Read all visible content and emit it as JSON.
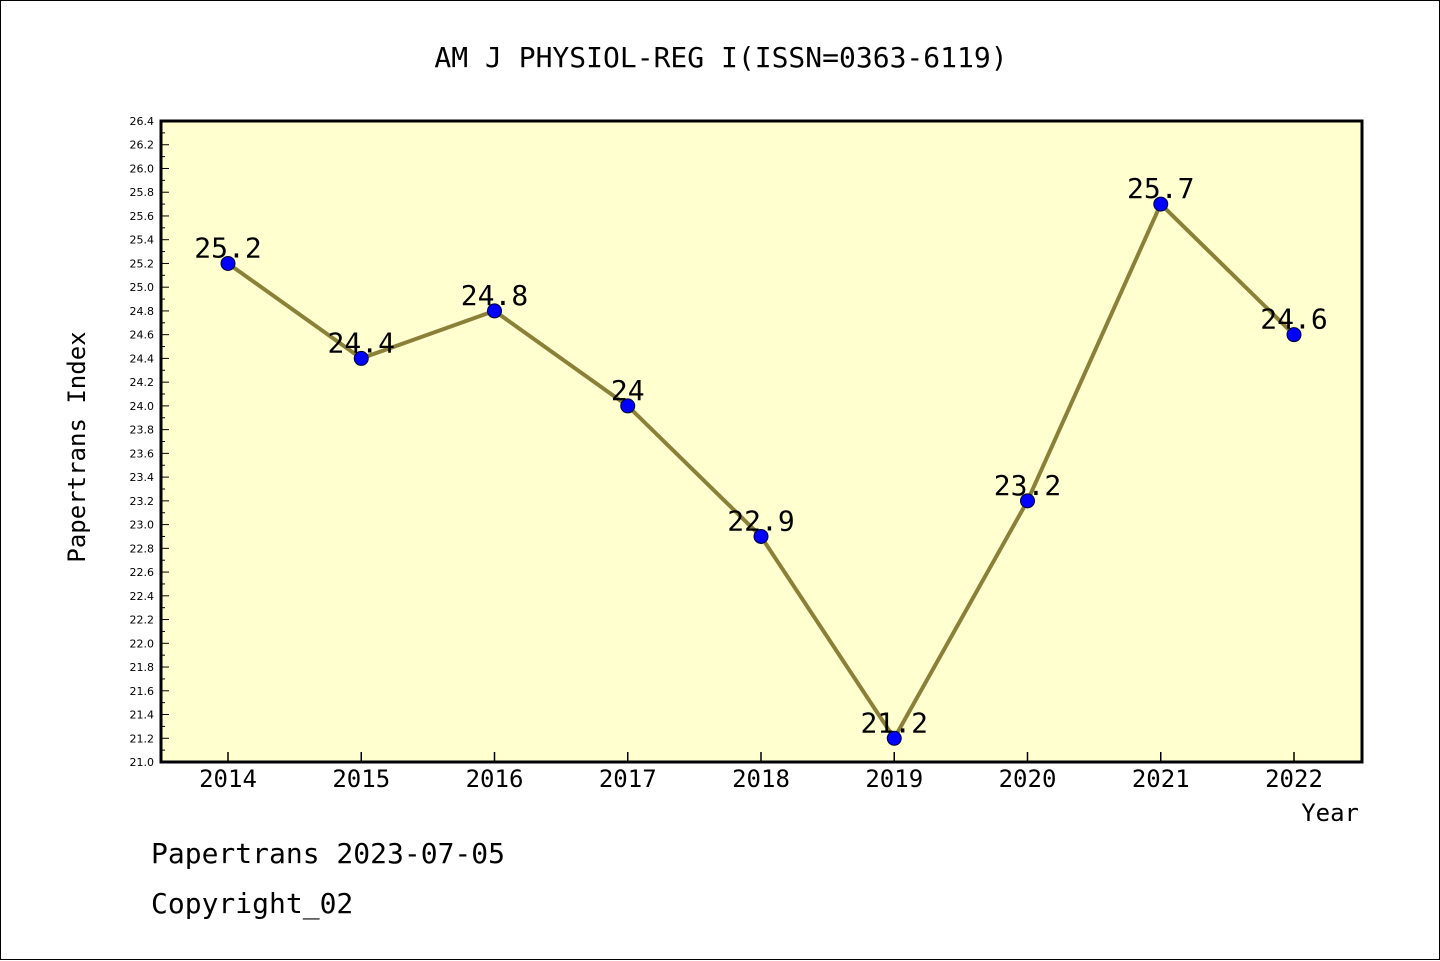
{
  "chart_data": {
    "type": "line",
    "title": "AM J PHYSIOL-REG I(ISSN=0363-6119)",
    "xlabel": "Year",
    "ylabel": "Papertrans Index",
    "categories": [
      "2014",
      "2015",
      "2016",
      "2017",
      "2018",
      "2019",
      "2020",
      "2021",
      "2022"
    ],
    "series": [
      {
        "values": [
          25.2,
          24.4,
          24.8,
          24.0,
          22.9,
          21.2,
          23.2,
          25.7,
          24.6
        ],
        "labels": [
          "25.2",
          "24.4",
          "24.8",
          "24",
          "22.9",
          "21.2",
          "23.2",
          "25.7",
          "24.6"
        ]
      }
    ],
    "ylim": [
      21.0,
      26.4
    ],
    "ytick_step": 0.2,
    "grid": false,
    "colors": {
      "plot_background": "#ffffd0",
      "line": "#8b8038",
      "marker": "#0000ff"
    }
  },
  "footer": {
    "line1": "Papertrans 2023-07-05",
    "line2": "Copyright_02"
  }
}
